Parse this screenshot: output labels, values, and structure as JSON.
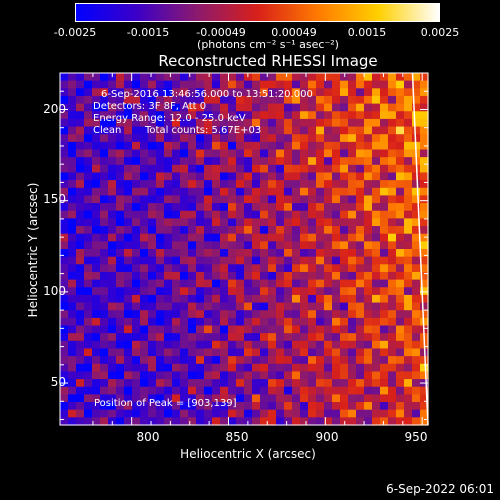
{
  "colorbar": {
    "ticks": [
      "-0.0025",
      "-0.0015",
      "-0.00049",
      "0.00049",
      "0.0015",
      "0.0025"
    ],
    "units": "(photons cm⁻² s⁻¹ asec⁻²)",
    "colors": [
      "#0000ff",
      "#3c00c8",
      "#8c1a6e",
      "#d8201a",
      "#ff7a00",
      "#ffd000",
      "#ffffff"
    ]
  },
  "chart_data": {
    "type": "heatmap",
    "title": "Reconstructed RHESSI Image",
    "xlabel": "Heliocentric X (arcsec)",
    "ylabel": "Heliocentric Y (arcsec)",
    "xlim": [
      763,
      953
    ],
    "ylim": [
      27,
      220
    ],
    "xticks": [
      800,
      850,
      900,
      950
    ],
    "yticks": [
      50,
      100,
      150,
      200
    ],
    "value_range": [
      -0.0025,
      0.0025
    ],
    "peak": [
      903,
      139
    ],
    "limb_line": [
      [
        945,
        220
      ],
      [
        953,
        27
      ]
    ]
  },
  "annotations": {
    "time_range": "6-Sep-2016 13:46:56.000 to 13:51:20.000",
    "detectors": "Detectors: 3F 8F, Att 0",
    "energy": "Energy Range: 12.0 - 25.0 keV",
    "clean": "Clean",
    "total_counts": "Total counts: 5.67E+03",
    "peak_position": "Position of Peak = [903,139]"
  },
  "timestamp": "6-Sep-2022 06:01"
}
